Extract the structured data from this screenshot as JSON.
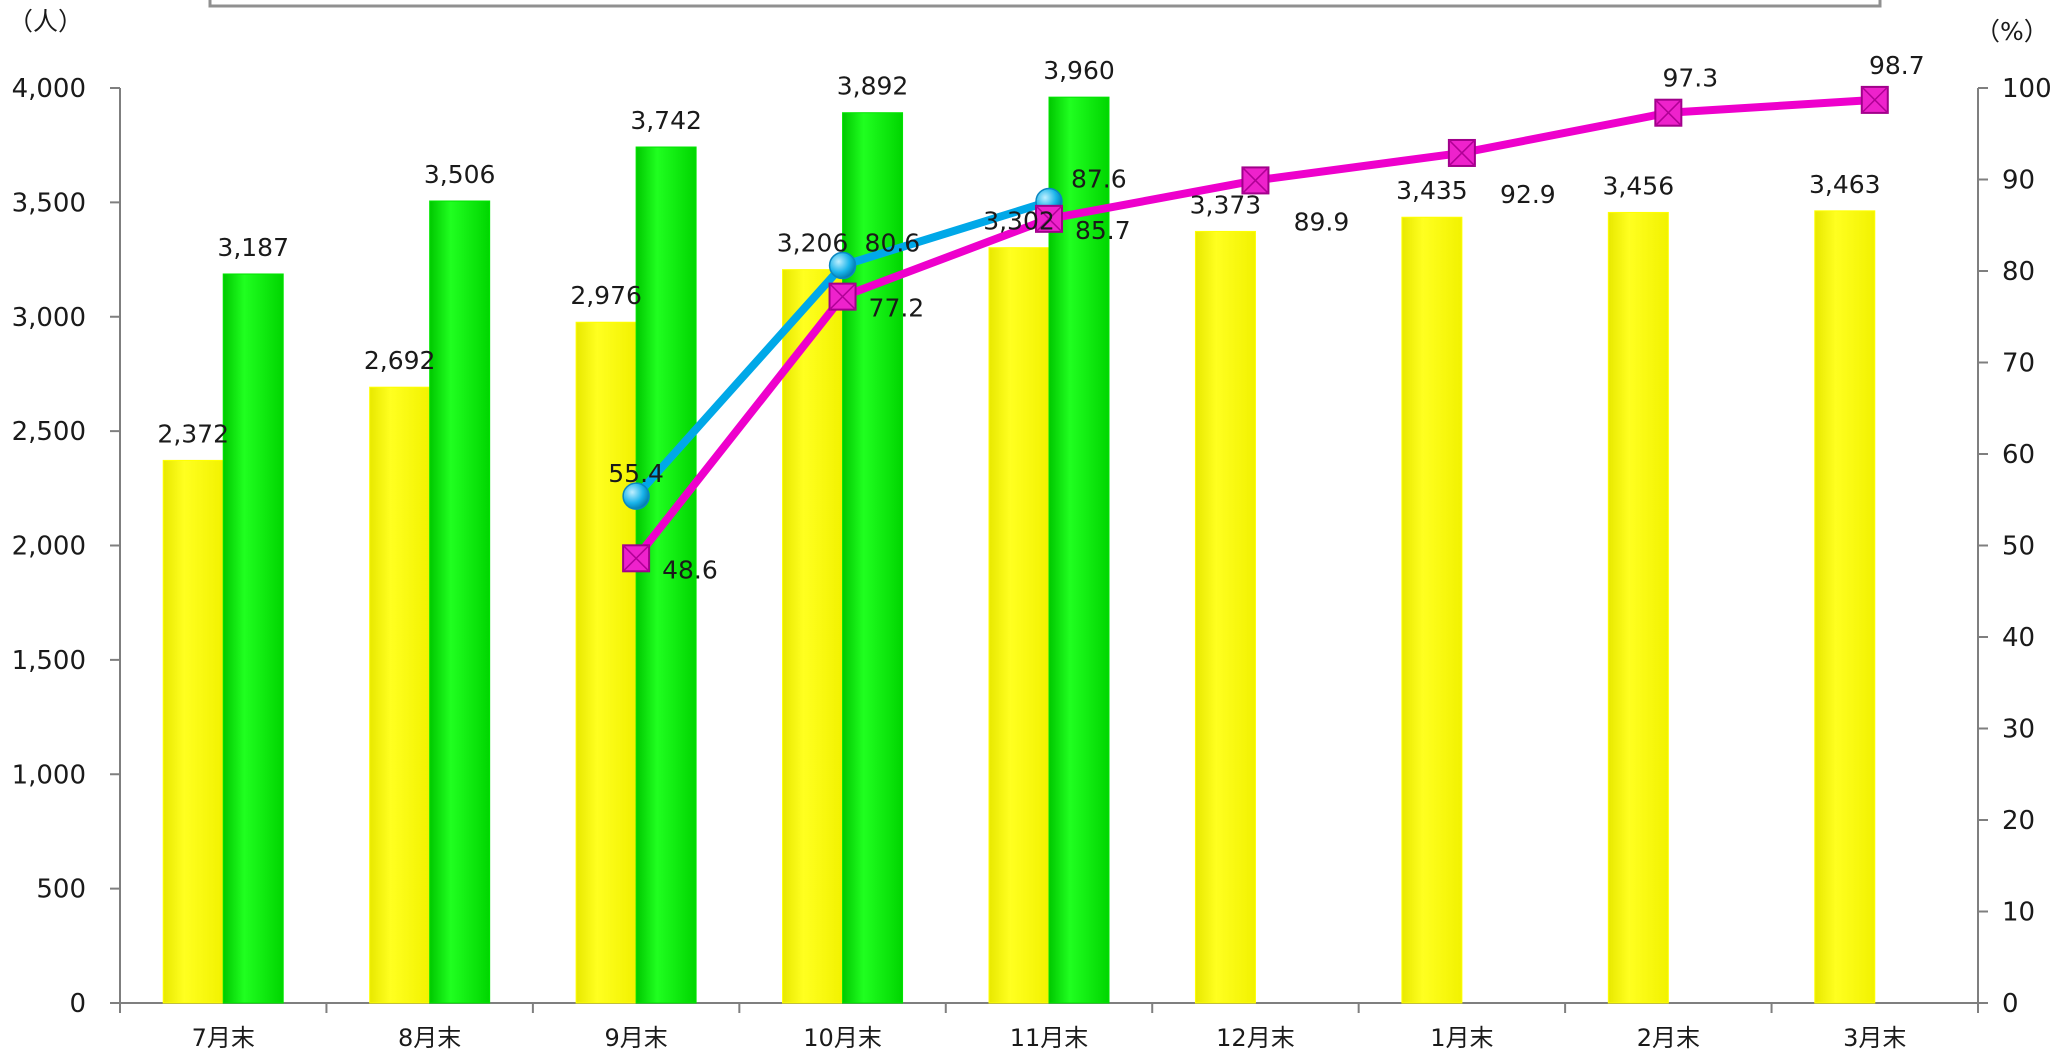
{
  "chart_data": {
    "type": "bar",
    "categories": [
      "7月末",
      "8月末",
      "9月末",
      "10月末",
      "11月末",
      "12月末",
      "1月末",
      "2月末",
      "3月末"
    ],
    "series": [
      {
        "kind": "bar",
        "axis": "left",
        "color": "#ffff00",
        "values": [
          2372,
          2692,
          2976,
          3206,
          3302,
          3373,
          3435,
          3456,
          3463
        ],
        "labels": [
          "2,372",
          "2,692",
          "2,976",
          "3,206",
          "3,302",
          "3,373",
          "3,435",
          "3,456",
          "3,463"
        ]
      },
      {
        "kind": "bar",
        "axis": "left",
        "color": "#00e600",
        "values": [
          3187,
          3506,
          3742,
          3892,
          3960,
          null,
          null,
          null,
          null
        ],
        "labels": [
          "3,187",
          "3,506",
          "3,742",
          "3,892",
          "3,960",
          "",
          "",
          "",
          ""
        ]
      },
      {
        "kind": "line",
        "axis": "right",
        "color": "#00a8e8",
        "marker": "circle",
        "values": [
          null,
          null,
          55.4,
          80.6,
          87.6,
          null,
          null,
          null,
          null
        ],
        "labels": [
          "",
          "",
          "55.4",
          "80.6",
          "87.6",
          "",
          "",
          "",
          ""
        ]
      },
      {
        "kind": "line",
        "axis": "right",
        "color": "#ee00cc",
        "marker": "square",
        "values": [
          null,
          null,
          48.6,
          77.2,
          85.7,
          89.9,
          92.9,
          97.3,
          98.7
        ],
        "labels": [
          "",
          "",
          "48.6",
          "77.2",
          "85.7",
          "89.9",
          "92.9",
          "97.3",
          "98.7"
        ]
      }
    ],
    "left_axis": {
      "unit": "（人）",
      "ylim": [
        0,
        4000
      ],
      "ticks": [
        "0",
        "500",
        "1,000",
        "1,500",
        "2,000",
        "2,500",
        "3,000",
        "3,500",
        "4,000"
      ]
    },
    "right_axis": {
      "unit": "（%）",
      "ylim": [
        0,
        100
      ],
      "ticks": [
        "0",
        "10",
        "20",
        "30",
        "40",
        "50",
        "60",
        "70",
        "80",
        "90",
        "100"
      ]
    },
    "grid": false,
    "legend": "top (clipped, empty box)"
  }
}
